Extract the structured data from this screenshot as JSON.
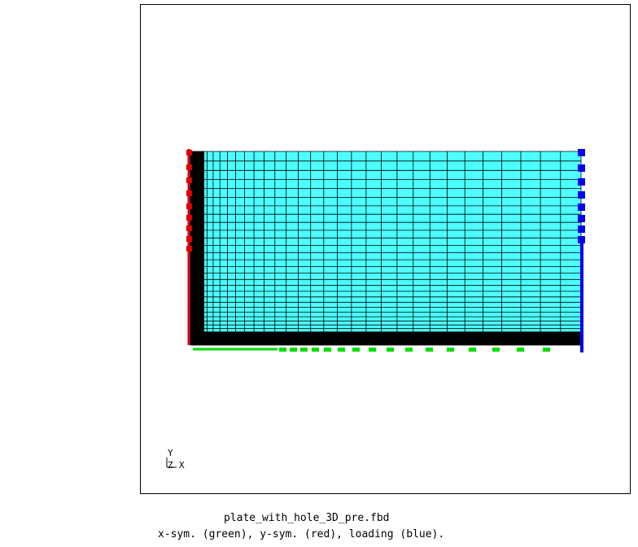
{
  "caption": {
    "file": "plate_with_hole_3D_pre.fbd",
    "legend": "x-sym. (green), y-sym. (red), loading (blue)."
  },
  "triad": {
    "y": "Y",
    "z": "Z",
    "x": "X"
  },
  "colors": {
    "mesh_fill": "#4dffff",
    "mesh_line": "#000000",
    "x_sym": "#00dd00",
    "y_sym": "#dd0000",
    "loading": "#0000ee"
  }
}
